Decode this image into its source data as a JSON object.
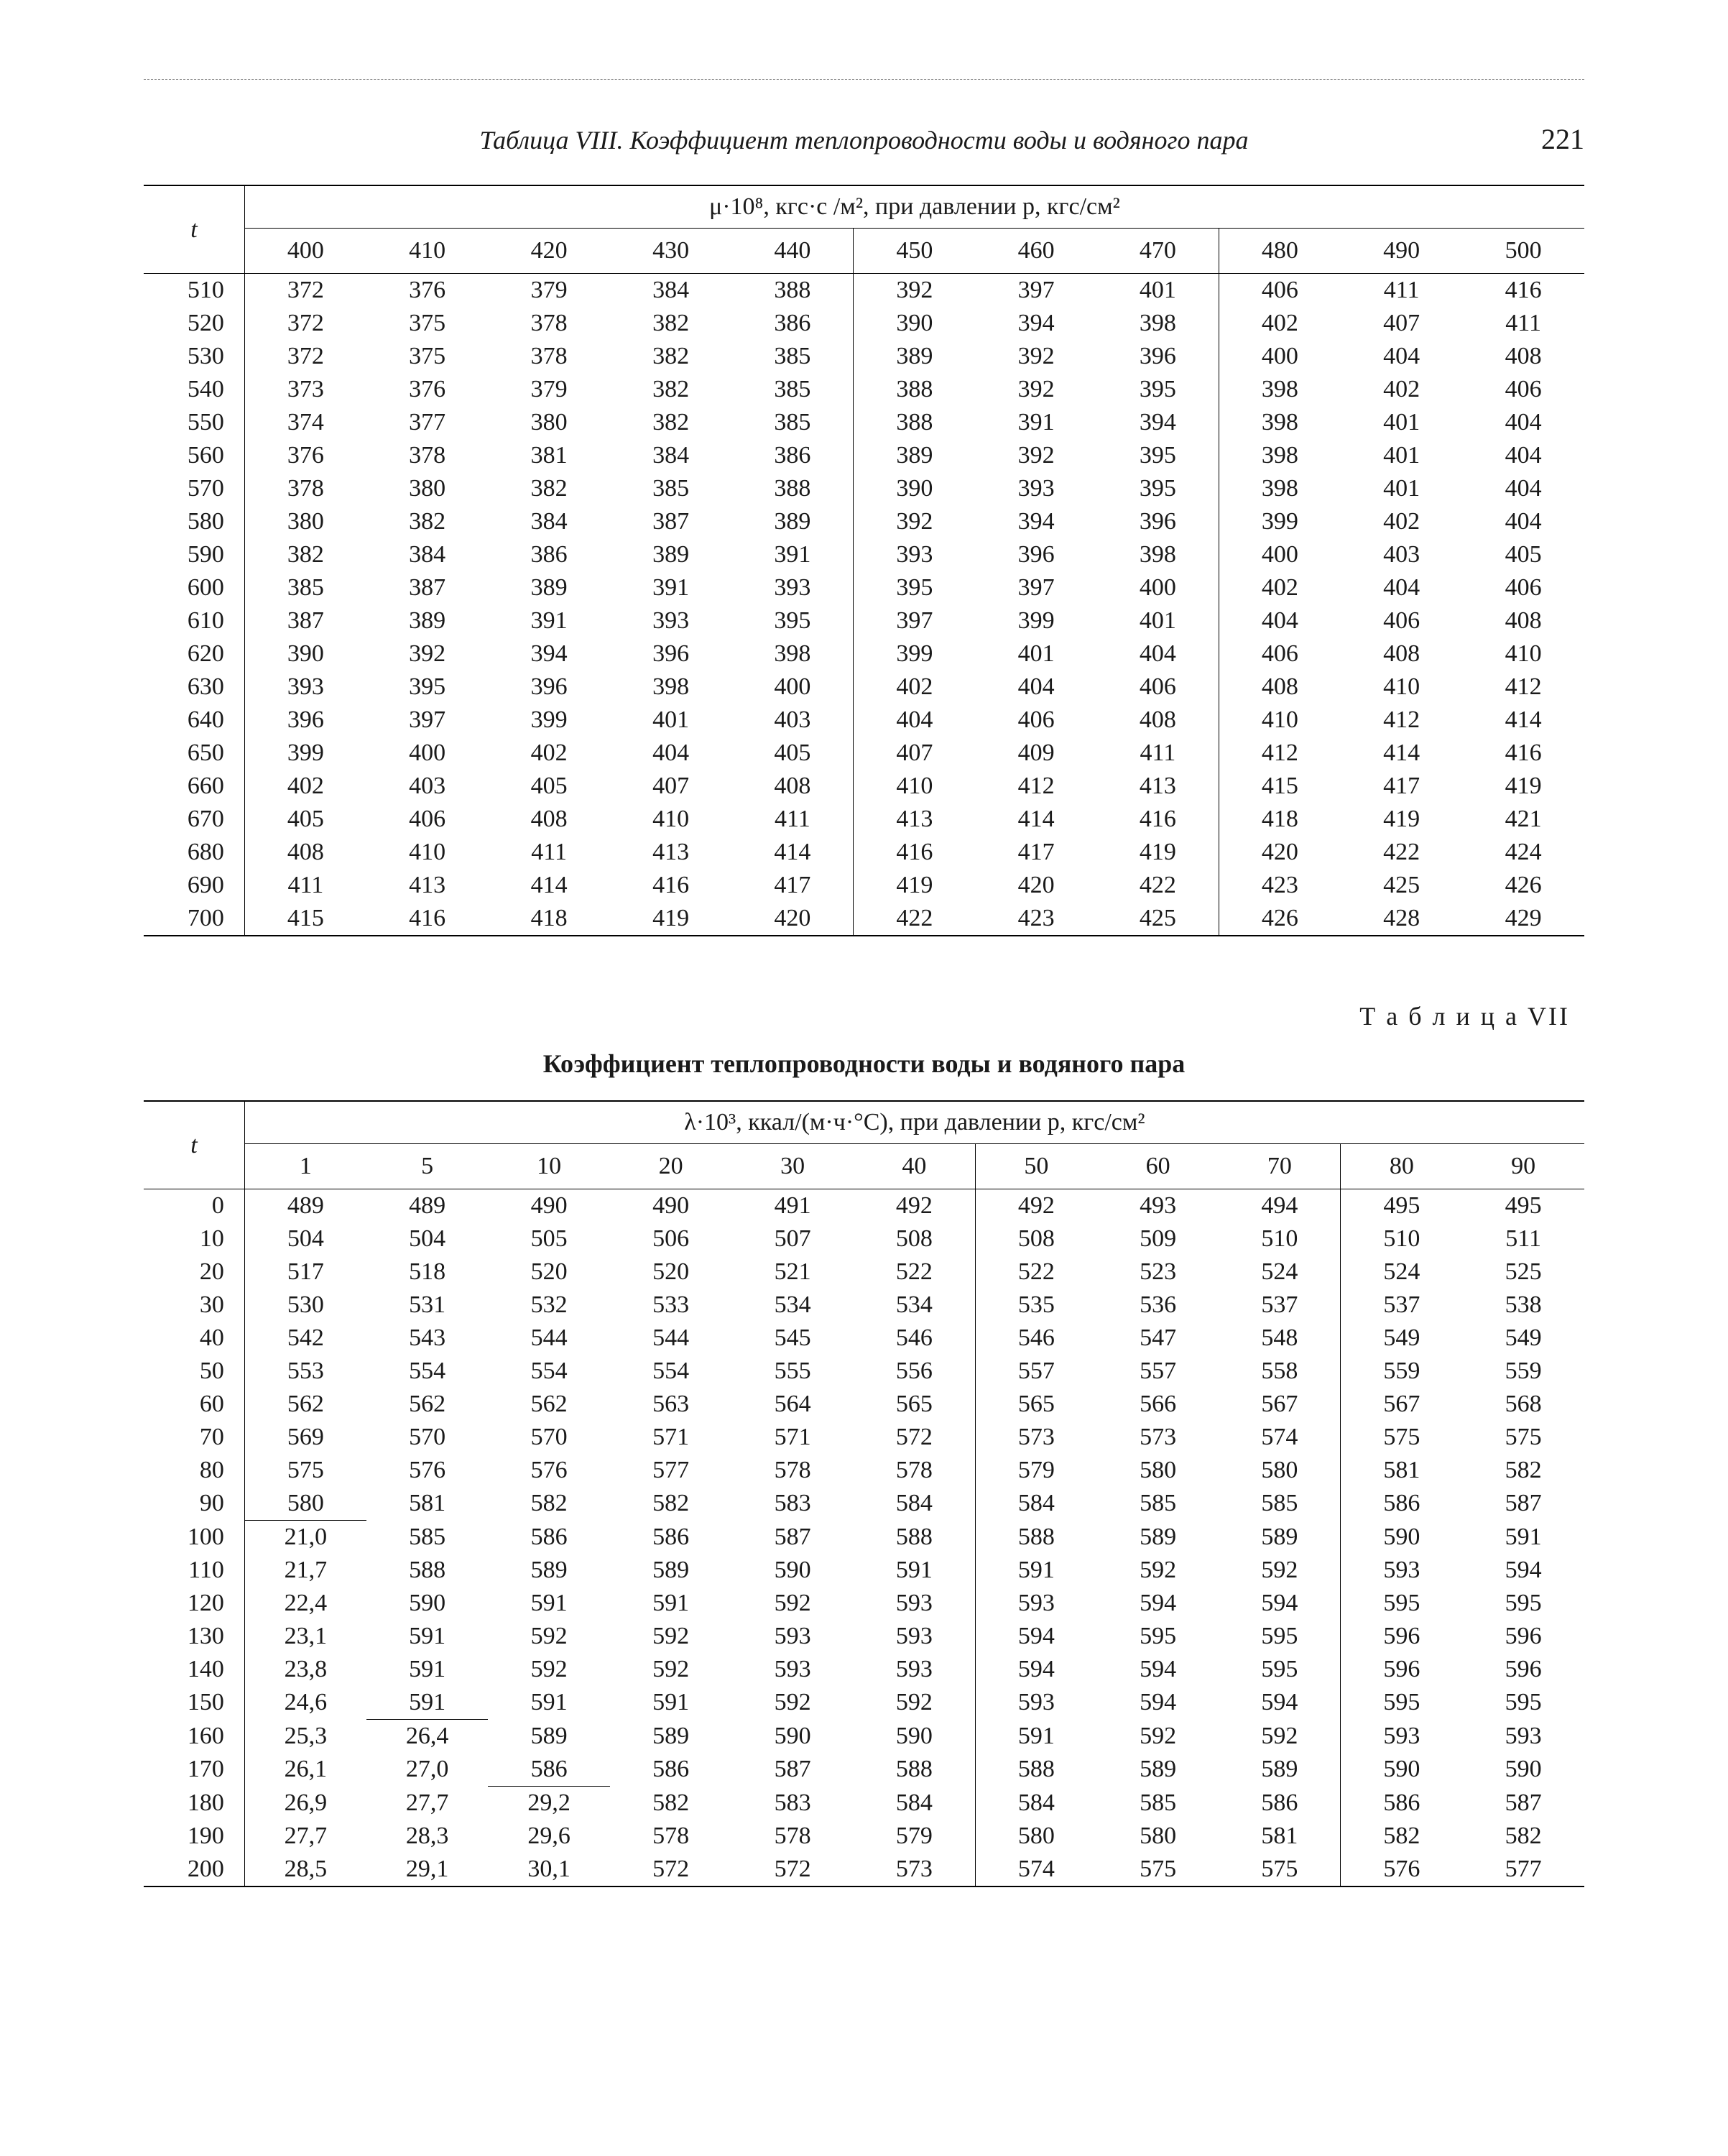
{
  "page_number": "221",
  "header_title": "Таблица VIII. Коэффициент теплопроводности воды и  водяного пара",
  "table1": {
    "super_header": "μ·10⁸, кгс·с /м², при давлении p, кгс/см²",
    "t_label": "t",
    "pressure_cols": [
      "400",
      "410",
      "420",
      "430",
      "440",
      "450",
      "460",
      "470",
      "480",
      "490",
      "500"
    ],
    "groups": [
      {
        "t": [
          "510",
          "520",
          "530",
          "540",
          "550"
        ],
        "v": [
          [
            "372",
            "376",
            "379",
            "384",
            "388",
            "392",
            "397",
            "401",
            "406",
            "411",
            "416"
          ],
          [
            "372",
            "375",
            "378",
            "382",
            "386",
            "390",
            "394",
            "398",
            "402",
            "407",
            "411"
          ],
          [
            "372",
            "375",
            "378",
            "382",
            "385",
            "389",
            "392",
            "396",
            "400",
            "404",
            "408"
          ],
          [
            "373",
            "376",
            "379",
            "382",
            "385",
            "388",
            "392",
            "395",
            "398",
            "402",
            "406"
          ],
          [
            "374",
            "377",
            "380",
            "382",
            "385",
            "388",
            "391",
            "394",
            "398",
            "401",
            "404"
          ]
        ]
      },
      {
        "t": [
          "560",
          "570",
          "580",
          "590",
          "600"
        ],
        "v": [
          [
            "376",
            "378",
            "381",
            "384",
            "386",
            "389",
            "392",
            "395",
            "398",
            "401",
            "404"
          ],
          [
            "378",
            "380",
            "382",
            "385",
            "388",
            "390",
            "393",
            "395",
            "398",
            "401",
            "404"
          ],
          [
            "380",
            "382",
            "384",
            "387",
            "389",
            "392",
            "394",
            "396",
            "399",
            "402",
            "404"
          ],
          [
            "382",
            "384",
            "386",
            "389",
            "391",
            "393",
            "396",
            "398",
            "400",
            "403",
            "405"
          ],
          [
            "385",
            "387",
            "389",
            "391",
            "393",
            "395",
            "397",
            "400",
            "402",
            "404",
            "406"
          ]
        ]
      },
      {
        "t": [
          "610",
          "620",
          "630",
          "640",
          "650"
        ],
        "v": [
          [
            "387",
            "389",
            "391",
            "393",
            "395",
            "397",
            "399",
            "401",
            "404",
            "406",
            "408"
          ],
          [
            "390",
            "392",
            "394",
            "396",
            "398",
            "399",
            "401",
            "404",
            "406",
            "408",
            "410"
          ],
          [
            "393",
            "395",
            "396",
            "398",
            "400",
            "402",
            "404",
            "406",
            "408",
            "410",
            "412"
          ],
          [
            "396",
            "397",
            "399",
            "401",
            "403",
            "404",
            "406",
            "408",
            "410",
            "412",
            "414"
          ],
          [
            "399",
            "400",
            "402",
            "404",
            "405",
            "407",
            "409",
            "411",
            "412",
            "414",
            "416"
          ]
        ]
      },
      {
        "t": [
          "660",
          "670",
          "680",
          "690",
          "700"
        ],
        "v": [
          [
            "402",
            "403",
            "405",
            "407",
            "408",
            "410",
            "412",
            "413",
            "415",
            "417",
            "419"
          ],
          [
            "405",
            "406",
            "408",
            "410",
            "411",
            "413",
            "414",
            "416",
            "418",
            "419",
            "421"
          ],
          [
            "408",
            "410",
            "411",
            "413",
            "414",
            "416",
            "417",
            "419",
            "420",
            "422",
            "424"
          ],
          [
            "411",
            "413",
            "414",
            "416",
            "417",
            "419",
            "420",
            "422",
            "423",
            "425",
            "426"
          ],
          [
            "415",
            "416",
            "418",
            "419",
            "420",
            "422",
            "423",
            "425",
            "426",
            "428",
            "429"
          ]
        ]
      }
    ]
  },
  "mid_label": "Т а б л и ц а   VII",
  "mid_title": "Коэффициент теплопроводности воды и водяного пара",
  "table2": {
    "super_header": "λ·10³, ккал/(м·ч·°C), при давлении p, кгс/см²",
    "t_label": "t",
    "pressure_cols": [
      "1",
      "5",
      "10",
      "20",
      "30",
      "40",
      "50",
      "60",
      "70",
      "80",
      "90"
    ],
    "groups": [
      {
        "t": [
          "0",
          "10",
          "20",
          "30",
          "40",
          "50"
        ],
        "v": [
          [
            "489",
            "489",
            "490",
            "490",
            "491",
            "492",
            "492",
            "493",
            "494",
            "495",
            "495"
          ],
          [
            "504",
            "504",
            "505",
            "506",
            "507",
            "508",
            "508",
            "509",
            "510",
            "510",
            "511"
          ],
          [
            "517",
            "518",
            "520",
            "520",
            "521",
            "522",
            "522",
            "523",
            "524",
            "524",
            "525"
          ],
          [
            "530",
            "531",
            "532",
            "533",
            "534",
            "534",
            "535",
            "536",
            "537",
            "537",
            "538"
          ],
          [
            "542",
            "543",
            "544",
            "544",
            "545",
            "546",
            "546",
            "547",
            "548",
            "549",
            "549"
          ],
          [
            "553",
            "554",
            "554",
            "554",
            "555",
            "556",
            "557",
            "557",
            "558",
            "559",
            "559"
          ]
        ]
      },
      {
        "t": [
          "60",
          "70",
          "80",
          "90"
        ],
        "v": [
          [
            "562",
            "562",
            "562",
            "563",
            "564",
            "565",
            "565",
            "566",
            "567",
            "567",
            "568"
          ],
          [
            "569",
            "570",
            "570",
            "571",
            "571",
            "572",
            "573",
            "573",
            "574",
            "575",
            "575"
          ],
          [
            "575",
            "576",
            "576",
            "577",
            "578",
            "578",
            "579",
            "580",
            "580",
            "581",
            "582"
          ],
          [
            "580",
            "581",
            "582",
            "582",
            "583",
            "584",
            "584",
            "585",
            "585",
            "586",
            "587"
          ]
        ]
      },
      {
        "t": [
          "100"
        ],
        "partial_top_cols": [
          0
        ],
        "v": [
          [
            "21,0",
            "585",
            "586",
            "586",
            "587",
            "588",
            "588",
            "589",
            "589",
            "590",
            "591"
          ]
        ]
      },
      {
        "t": [
          "110",
          "120",
          "130",
          "140",
          "150"
        ],
        "v": [
          [
            "21,7",
            "588",
            "589",
            "589",
            "590",
            "591",
            "591",
            "592",
            "592",
            "593",
            "594"
          ],
          [
            "22,4",
            "590",
            "591",
            "591",
            "592",
            "593",
            "593",
            "594",
            "594",
            "595",
            "595"
          ],
          [
            "23,1",
            "591",
            "592",
            "592",
            "593",
            "593",
            "594",
            "595",
            "595",
            "596",
            "596"
          ],
          [
            "23,8",
            "591",
            "592",
            "592",
            "593",
            "593",
            "594",
            "594",
            "595",
            "596",
            "596"
          ],
          [
            "24,6",
            "591",
            "591",
            "591",
            "592",
            "592",
            "593",
            "594",
            "594",
            "595",
            "595"
          ]
        ]
      },
      {
        "t": [
          "160",
          "170"
        ],
        "partial_top_cols": [
          1
        ],
        "v": [
          [
            "25,3",
            "26,4",
            "589",
            "589",
            "590",
            "590",
            "591",
            "592",
            "592",
            "593",
            "593"
          ],
          [
            "26,1",
            "27,0",
            "586",
            "586",
            "587",
            "588",
            "588",
            "589",
            "589",
            "590",
            "590"
          ]
        ]
      },
      {
        "t": [
          "180",
          "190",
          "200"
        ],
        "partial_top_cols": [
          2
        ],
        "v": [
          [
            "26,9",
            "27,7",
            "29,2",
            "582",
            "583",
            "584",
            "584",
            "585",
            "586",
            "586",
            "587"
          ],
          [
            "27,7",
            "28,3",
            "29,6",
            "578",
            "578",
            "579",
            "580",
            "580",
            "581",
            "582",
            "582"
          ],
          [
            "28,5",
            "29,1",
            "30,1",
            "572",
            "572",
            "573",
            "574",
            "575",
            "575",
            "576",
            "577"
          ]
        ]
      }
    ]
  }
}
